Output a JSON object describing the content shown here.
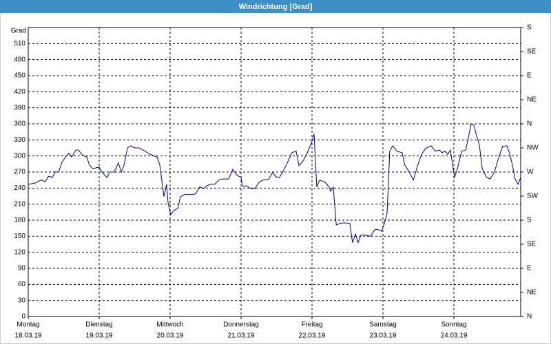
{
  "chart_data": {
    "type": "line",
    "title": "Windrichtung [Grad]",
    "ylabel": "Grad",
    "xlim": [
      0,
      166.6
    ],
    "ylim": [
      0,
      540
    ],
    "y2lim": [
      0,
      540
    ],
    "grid": true,
    "color": "#000080",
    "yticks": [
      0,
      30,
      60,
      90,
      120,
      150,
      180,
      210,
      240,
      270,
      300,
      330,
      360,
      390,
      420,
      450,
      480,
      510
    ],
    "y2ticks": [
      {
        "value": 0,
        "label": "N"
      },
      {
        "value": 45,
        "label": "NE"
      },
      {
        "value": 90,
        "label": "E"
      },
      {
        "value": 135,
        "label": "SE"
      },
      {
        "value": 180,
        "label": "S"
      },
      {
        "value": 225,
        "label": "SW"
      },
      {
        "value": 270,
        "label": "W"
      },
      {
        "value": 315,
        "label": "NW"
      },
      {
        "value": 360,
        "label": "N"
      },
      {
        "value": 405,
        "label": "NE"
      },
      {
        "value": 450,
        "label": "E"
      },
      {
        "value": 495,
        "label": "SE"
      },
      {
        "value": 540,
        "label": "S"
      }
    ],
    "xticks": [
      {
        "value": 0,
        "label": "Montag",
        "date": "18.03.19"
      },
      {
        "value": 24,
        "label": "Dienstag",
        "date": "19.03.19"
      },
      {
        "value": 48,
        "label": "Mittwoch",
        "date": "20.03.19"
      },
      {
        "value": 72,
        "label": "Donnerstag",
        "date": "21.03.19"
      },
      {
        "value": 96,
        "label": "Freitag",
        "date": "22.03.19"
      },
      {
        "value": 120,
        "label": "Samstag",
        "date": "23.03.19"
      },
      {
        "value": 144,
        "label": "Sonntag",
        "date": "24.03.19"
      }
    ],
    "x": [
      0,
      2.1,
      4.4,
      5.8,
      6.8,
      8.2,
      9.1,
      10.3,
      11.4,
      12.6,
      13.7,
      14.7,
      16.1,
      17.0,
      18.4,
      19.8,
      20.7,
      21.9,
      23.1,
      24.0,
      24.9,
      26.6,
      27.7,
      29.1,
      30.5,
      31.5,
      32.4,
      33.6,
      34.7,
      36.1,
      37.5,
      38.9,
      40.3,
      41.7,
      43.6,
      44.5,
      45.9,
      46.8,
      47.3,
      48.2,
      49.2,
      50.6,
      51.5,
      52.9,
      54.8,
      56.6,
      58.0,
      59.4,
      60.3,
      61.7,
      63.1,
      64.5,
      65.9,
      67.8,
      69.2,
      70.6,
      72.0,
      72.5,
      73.9,
      75.3,
      76.7,
      78.1,
      79.5,
      81.3,
      82.7,
      83.7,
      85.0,
      86.4,
      87.8,
      89.2,
      90.6,
      91.6,
      93.0,
      94.4,
      95.8,
      96.7,
      97.6,
      98.6,
      100.4,
      101.8,
      102.3,
      103.2,
      104.2,
      105.5,
      106.9,
      108.8,
      109.7,
      110.7,
      111.6,
      112.5,
      113.9,
      115.8,
      117.2,
      118.1,
      119.5,
      120.5,
      121.4,
      122.3,
      123.3,
      124.7,
      126.5,
      127.4,
      128.9,
      130.3,
      131.6,
      133.0,
      134.4,
      136.3,
      137.7,
      139.1,
      140.0,
      141.0,
      141.9,
      142.8,
      144.2,
      145.2,
      146.6,
      148.0,
      148.9,
      149.8,
      150.8,
      151.7,
      152.6,
      153.6,
      155.0,
      156.3,
      157.7,
      159.1,
      160.5,
      161.9,
      162.8,
      163.8,
      164.7,
      165.7,
      166.6
    ],
    "values": [
      247,
      249,
      255,
      252,
      262,
      260,
      270,
      270,
      288,
      298,
      305,
      298,
      311,
      311,
      301,
      298,
      283,
      276,
      278,
      279,
      270,
      260,
      270,
      270,
      287,
      270,
      283,
      315,
      319,
      315,
      315,
      311,
      306,
      302,
      298,
      283,
      224,
      247,
      213,
      190,
      198,
      202,
      224,
      228,
      228,
      229,
      242,
      239,
      244,
      247,
      247,
      255,
      257,
      257,
      275,
      264,
      260,
      243,
      244,
      239,
      239,
      251,
      255,
      256,
      270,
      261,
      260,
      273,
      289,
      306,
      309,
      282,
      291,
      306,
      324,
      341,
      242,
      255,
      251,
      242,
      234,
      242,
      171,
      174,
      175,
      174,
      138,
      154,
      138,
      152,
      152,
      150,
      162,
      163,
      159,
      174,
      193,
      309,
      319,
      309,
      306,
      283,
      270,
      255,
      280,
      302,
      314,
      319,
      309,
      311,
      306,
      309,
      303,
      311,
      260,
      276,
      309,
      311,
      334,
      360,
      357,
      337,
      321,
      276,
      260,
      257,
      270,
      296,
      318,
      319,
      306,
      283,
      257,
      247,
      260
    ]
  }
}
